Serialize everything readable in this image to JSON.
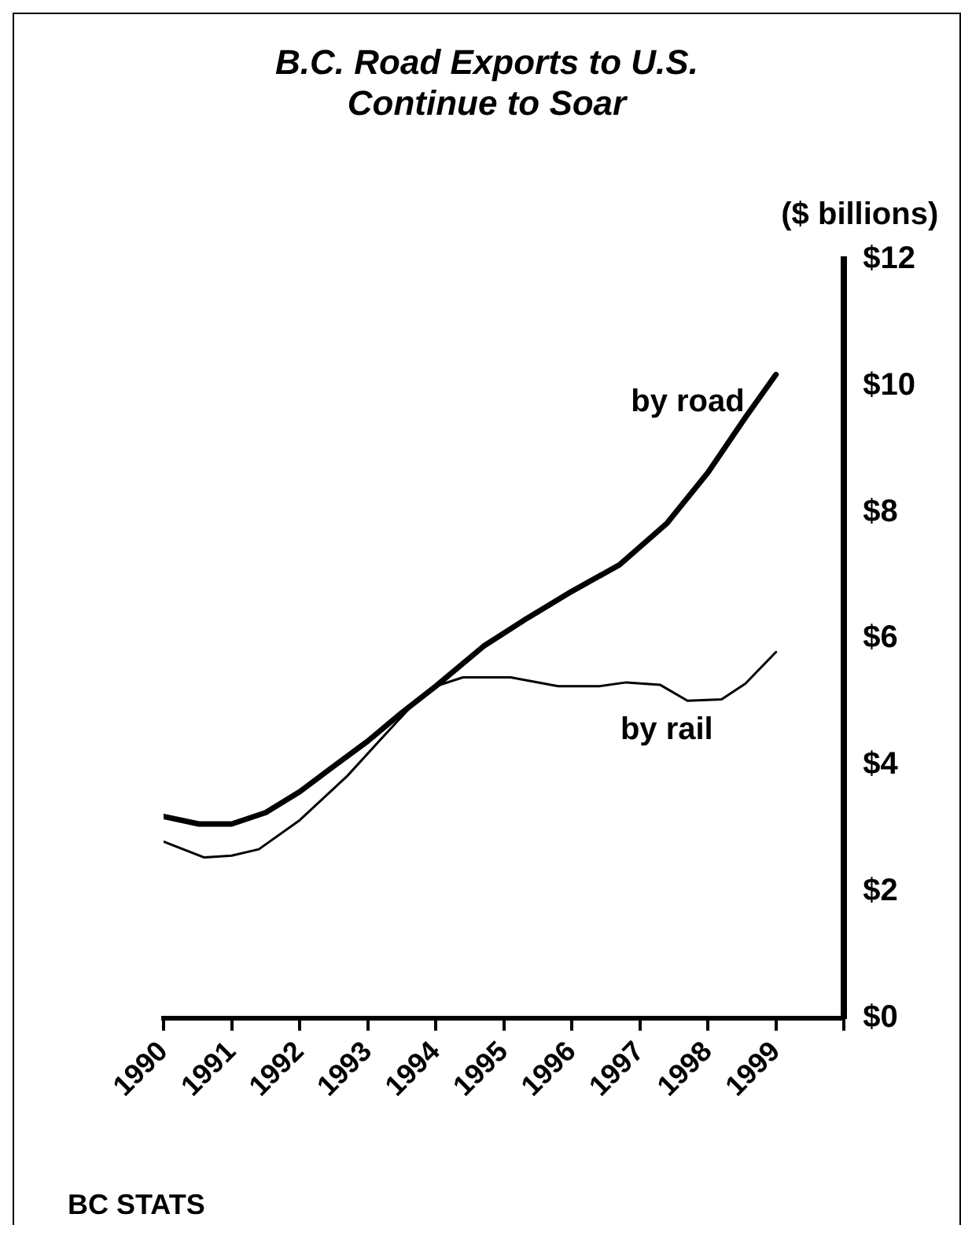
{
  "chart_data": {
    "type": "line",
    "title": "B.C. Road Exports to U.S.\nContinue to Soar",
    "ylabel": "($ billions)",
    "annotations": [
      "BC STATS"
    ],
    "series": [
      {
        "name": "by road",
        "color": "#000000",
        "x": [
          1990,
          1990.52,
          1991,
          1991.5,
          1992,
          1992.47,
          1993,
          1993.5,
          1994,
          1994.7,
          1995.35,
          1996,
          1996.7,
          1997.4,
          1998,
          1998.55,
          1999
        ],
        "values": [
          3.19,
          3.07,
          3.07,
          3.25,
          3.58,
          3.96,
          4.38,
          4.83,
          5.25,
          5.88,
          6.33,
          6.75,
          7.17,
          7.83,
          8.63,
          9.5,
          10.18
        ]
      },
      {
        "name": "by rail",
        "color": "#000000",
        "x": [
          1990,
          1990.6,
          1991,
          1991.4,
          1992,
          1992.7,
          1993.2,
          1993.7,
          1994,
          1994.4,
          1995.1,
          1995.8,
          1996.4,
          1996.8,
          1997.3,
          1997.7,
          1998.2,
          1998.55,
          1999
        ],
        "values": [
          2.79,
          2.54,
          2.57,
          2.67,
          3.13,
          3.83,
          4.42,
          5.0,
          5.25,
          5.39,
          5.39,
          5.25,
          5.25,
          5.31,
          5.27,
          5.02,
          5.04,
          5.29,
          5.79
        ]
      }
    ],
    "xlim": [
      1990,
      2000
    ],
    "xticks": [
      1990,
      1991,
      1992,
      1993,
      1994,
      1995,
      1996,
      1997,
      1998,
      1999,
      {
        "value": 2000,
        "label": null
      }
    ],
    "ylim": [
      0,
      12
    ],
    "yticks": [
      {
        "value": 0,
        "label": "$0"
      },
      {
        "value": 2,
        "label": "$2"
      },
      {
        "value": 4,
        "label": "$4"
      },
      {
        "value": 6,
        "label": "$6"
      },
      {
        "value": 8,
        "label": "$8"
      },
      {
        "value": 10,
        "label": "$10"
      },
      {
        "value": 12,
        "label": "$12"
      }
    ],
    "grid": false,
    "legend": false,
    "marker": "none",
    "line_style": "solid"
  }
}
